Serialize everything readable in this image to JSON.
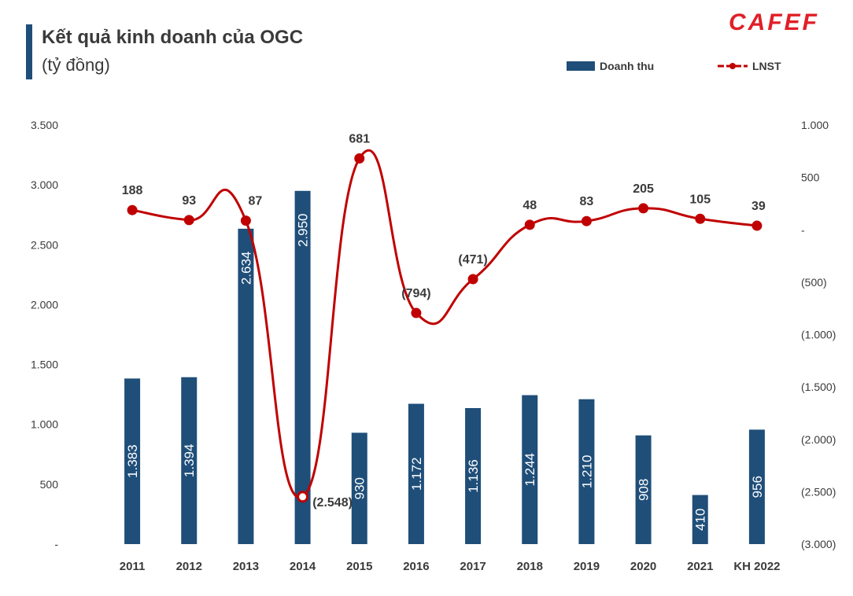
{
  "header": {
    "title": "Kết quả kinh doanh của OGC",
    "subtitle": "(tỷ đồng)",
    "logo_text": "CAFEF"
  },
  "colors": {
    "bar": "#1f4e79",
    "line": "#c00000",
    "text": "#3a3a3a",
    "logo": "#e11f26"
  },
  "chart_data": {
    "type": "bar",
    "categories": [
      "2011",
      "2012",
      "2013",
      "2014",
      "2015",
      "2016",
      "2017",
      "2018",
      "2019",
      "2020",
      "2021",
      "KH 2022"
    ],
    "series": [
      {
        "name": "Doanh thu",
        "type": "bar",
        "axis": "left",
        "values": [
          1383,
          1394,
          2634,
          2950,
          930,
          1172,
          1136,
          1244,
          1210,
          908,
          410,
          956
        ],
        "labels": [
          "1.383",
          "1.394",
          "2.634",
          "2.950",
          "930",
          "1.172",
          "1.136",
          "1.244",
          "1.210",
          "908",
          "410",
          "956"
        ]
      },
      {
        "name": "LNST",
        "type": "line",
        "axis": "right",
        "values": [
          188,
          93,
          87,
          -2548,
          681,
          -794,
          -471,
          48,
          83,
          205,
          105,
          39
        ],
        "labels": [
          "188",
          "93",
          "87",
          "(2.548)",
          "681",
          "(794)",
          "(471)",
          "48",
          "83",
          "205",
          "105",
          "39"
        ]
      }
    ],
    "y_left": {
      "ylim": [
        0,
        3500
      ],
      "ticks": [
        0,
        500,
        1000,
        1500,
        2000,
        2500,
        3000,
        3500
      ],
      "tick_labels": [
        "-",
        "500",
        "1.000",
        "1.500",
        "2.000",
        "2.500",
        "3.000",
        "3.500"
      ]
    },
    "y_right": {
      "ylim": [
        -3000,
        1000
      ],
      "ticks": [
        1000,
        500,
        0,
        -500,
        -1000,
        -1500,
        -2000,
        -2500,
        -3000
      ],
      "tick_labels": [
        "1.000",
        "500",
        "-",
        "(500)",
        "(1.000)",
        "(1.500)",
        "(2.000)",
        "(2.500)",
        "(3.000)"
      ]
    },
    "grid": false,
    "legend": "top-right"
  }
}
